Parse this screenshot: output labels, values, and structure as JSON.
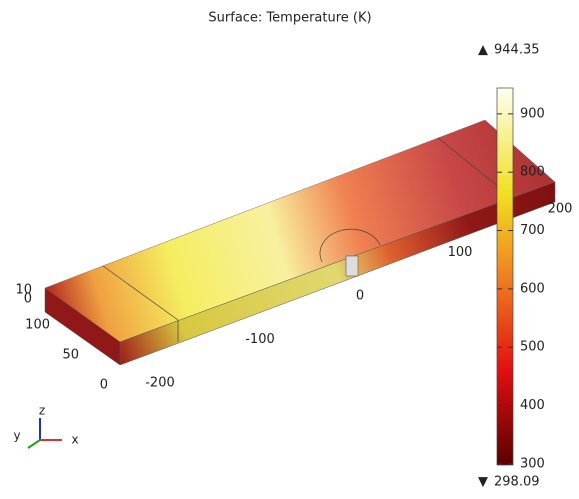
{
  "chart_data": {
    "type": "surface3d",
    "title": "Surface: Temperature (K)",
    "max": 944.35,
    "min": 298.09,
    "clim": [
      298.09,
      944.35
    ],
    "cticks": [
      300,
      400,
      500,
      600,
      700,
      800,
      900
    ],
    "xlim": [
      -200,
      200
    ],
    "xticks": [
      -200,
      -100,
      0,
      100,
      200
    ],
    "ylim": [
      0,
      100
    ],
    "yticks": [
      0,
      50,
      100
    ],
    "zlim": [
      0,
      10
    ],
    "zticks": [
      0,
      10
    ],
    "axes": [
      "x",
      "y",
      "z"
    ]
  }
}
